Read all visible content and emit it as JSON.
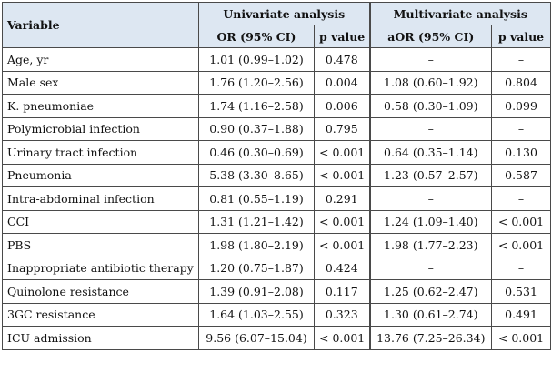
{
  "table": {
    "headers": {
      "variable": "Variable",
      "univariate": "Univariate analysis",
      "multivariate": "Multivariate analysis",
      "or": "OR (95% CI)",
      "p1": "p value",
      "aor": "aOR (95% CI)",
      "p2": "p value"
    },
    "rows": [
      {
        "variable": "Age, yr",
        "or": "1.01 (0.99–1.02)",
        "p1": "0.478",
        "aor": "–",
        "p2": "–"
      },
      {
        "variable": "Male sex",
        "or": "1.76 (1.20–2.56)",
        "p1": "0.004",
        "aor": "1.08 (0.60–1.92)",
        "p2": "0.804"
      },
      {
        "variable": "K. pneumoniae",
        "or": "1.74 (1.16–2.58)",
        "p1": "0.006",
        "aor": "0.58 (0.30–1.09)",
        "p2": "0.099"
      },
      {
        "variable": "Polymicrobial infection",
        "or": "0.90 (0.37–1.88)",
        "p1": "0.795",
        "aor": "–",
        "p2": "–"
      },
      {
        "variable": "Urinary tract infection",
        "or": "0.46 (0.30–0.69)",
        "p1": "< 0.001",
        "aor": "0.64 (0.35–1.14)",
        "p2": "0.130"
      },
      {
        "variable": "Pneumonia",
        "or": "5.38 (3.30–8.65)",
        "p1": "< 0.001",
        "aor": "1.23 (0.57–2.57)",
        "p2": "0.587"
      },
      {
        "variable": "Intra-abdominal infection",
        "or": "0.81 (0.55–1.19)",
        "p1": "0.291",
        "aor": "–",
        "p2": "–"
      },
      {
        "variable": "CCI",
        "or": "1.31 (1.21–1.42)",
        "p1": "< 0.001",
        "aor": "1.24 (1.09–1.40)",
        "p2": "< 0.001"
      },
      {
        "variable": "PBS",
        "or": "1.98 (1.80–2.19)",
        "p1": "< 0.001",
        "aor": "1.98 (1.77–2.23)",
        "p2": "< 0.001"
      },
      {
        "variable": "Inappropriate antibiotic therapy",
        "or": "1.20 (0.75–1.87)",
        "p1": "0.424",
        "aor": "–",
        "p2": "–"
      },
      {
        "variable": "Quinolone resistance",
        "or": "1.39 (0.91–2.08)",
        "p1": "0.117",
        "aor": "1.25 (0.62–2.47)",
        "p2": "0.531"
      },
      {
        "variable": "3GC resistance",
        "or": "1.64 (1.03–2.55)",
        "p1": "0.323",
        "aor": "1.30 (0.61–2.74)",
        "p2": "0.491"
      },
      {
        "variable": "ICU admission",
        "or": "9.56 (6.07–15.04)",
        "p1": "< 0.001",
        "aor": "13.76 (7.25–26.34)",
        "p2": "< 0.001"
      }
    ]
  }
}
